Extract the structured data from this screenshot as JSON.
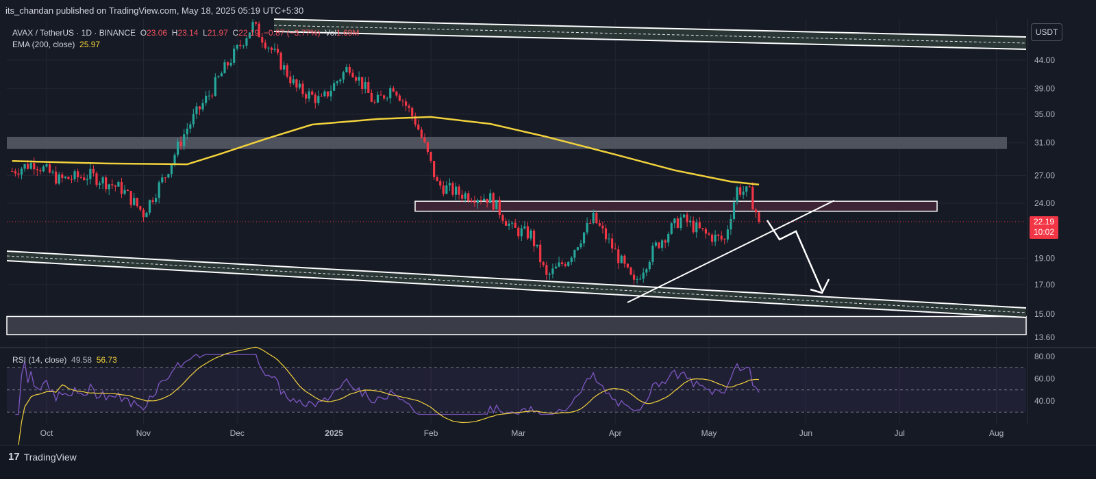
{
  "header": {
    "published_line": "its_chandan published on TradingView.com, May 18, 2025 05:19 UTC+5:30"
  },
  "legend": {
    "symbol": "AVAX / TetherUS · 1D · BINANCE",
    "o_label": "O",
    "o_value": "23.06",
    "h_label": "H",
    "h_value": "23.14",
    "l_label": "L",
    "l_value": "21.97",
    "c_label": "C",
    "c_value": "22.19",
    "change": "−0.87 (−3.77%)",
    "vol_label": "Vol",
    "vol_value": "1.69M",
    "ema_label": "EMA (200, close)",
    "ema_value": "25.97"
  },
  "rsi_legend": {
    "label": "RSI (14, close)",
    "value1": "49.58",
    "value2": "56.73"
  },
  "currency_button": "USDT",
  "price_tag": {
    "price": "22.19",
    "countdown": "10:02"
  },
  "footer": {
    "brand": "TradingView",
    "brand_mark": "17"
  },
  "colors": {
    "background": "#161a25",
    "bull": "#26a69a",
    "bear": "#f23645",
    "ema": "#f2d23c",
    "rsi_line": "#7e57c2",
    "rsi_ma": "#f2d23c"
  },
  "chart_data": {
    "type": "candlestick",
    "symbol": "AVAX / TetherUS",
    "interval": "1D",
    "y_axis_ticks": [
      44.0,
      39.0,
      35.0,
      31.0,
      27.0,
      24.0,
      19.0,
      17.0,
      15.0,
      13.6
    ],
    "x_axis_labels": [
      "Oct",
      "Nov",
      "Dec",
      "2025",
      "Feb",
      "Mar",
      "Apr",
      "May",
      "Jun",
      "Jul",
      "Aug"
    ],
    "ylim": [
      13.2,
      52
    ],
    "close_path": [
      {
        "month": "2024-09-20",
        "close": 27.5
      },
      {
        "month": "2024-09-27",
        "close": 28.5
      },
      {
        "month": "2024-10-05",
        "close": 26.5
      },
      {
        "month": "2024-10-15",
        "close": 27.0
      },
      {
        "month": "2024-10-25",
        "close": 25.5
      },
      {
        "month": "2024-11-01",
        "close": 23.0
      },
      {
        "month": "2024-11-08",
        "close": 27.0
      },
      {
        "month": "2024-11-15",
        "close": 33.0
      },
      {
        "month": "2024-11-22",
        "close": 38.0
      },
      {
        "month": "2024-12-01",
        "close": 46.0
      },
      {
        "month": "2024-12-06",
        "close": 51.0
      },
      {
        "month": "2024-12-12",
        "close": 46.0
      },
      {
        "month": "2024-12-20",
        "close": 39.0
      },
      {
        "month": "2024-12-28",
        "close": 37.0
      },
      {
        "month": "2025-01-06",
        "close": 43.0
      },
      {
        "month": "2025-01-14",
        "close": 36.5
      },
      {
        "month": "2025-01-20",
        "close": 39.5
      },
      {
        "month": "2025-01-27",
        "close": 34.0
      },
      {
        "month": "2025-02-03",
        "close": 26.0
      },
      {
        "month": "2025-02-10",
        "close": 25.0
      },
      {
        "month": "2025-02-20",
        "close": 24.5
      },
      {
        "month": "2025-02-27",
        "close": 21.5
      },
      {
        "month": "2025-03-05",
        "close": 21.0
      },
      {
        "month": "2025-03-10",
        "close": 17.5
      },
      {
        "month": "2025-03-17",
        "close": 19.0
      },
      {
        "month": "2025-03-25",
        "close": 22.5
      },
      {
        "month": "2025-04-01",
        "close": 19.5
      },
      {
        "month": "2025-04-07",
        "close": 17.0
      },
      {
        "month": "2025-04-14",
        "close": 20.0
      },
      {
        "month": "2025-04-22",
        "close": 22.5
      },
      {
        "month": "2025-04-30",
        "close": 21.0
      },
      {
        "month": "2025-05-06",
        "close": 20.5
      },
      {
        "month": "2025-05-10",
        "close": 25.5
      },
      {
        "month": "2025-05-14",
        "close": 25.0
      },
      {
        "month": "2025-05-17",
        "close": 22.19
      }
    ],
    "ema_200": {
      "label": "EMA (200, close)",
      "last": 25.97
    },
    "last_price": 22.19,
    "annotations": [
      {
        "type": "zone",
        "label": "resistance zone ~30.2-31.8"
      },
      {
        "type": "zone",
        "label": "supply zone ~23.2-24.2"
      },
      {
        "type": "zone",
        "label": "support zone ~13.6-14.8"
      },
      {
        "type": "trendline",
        "label": "rising support from Apr low"
      },
      {
        "type": "channel",
        "label": "descending channel"
      },
      {
        "type": "arrow",
        "label": "projected move down toward ~16"
      }
    ],
    "rsi": {
      "label": "RSI (14, close)",
      "value": 49.58,
      "ma": 56.73,
      "ticks": [
        80.0,
        60.0,
        40.0
      ],
      "bands": [
        70,
        50,
        30
      ]
    }
  }
}
